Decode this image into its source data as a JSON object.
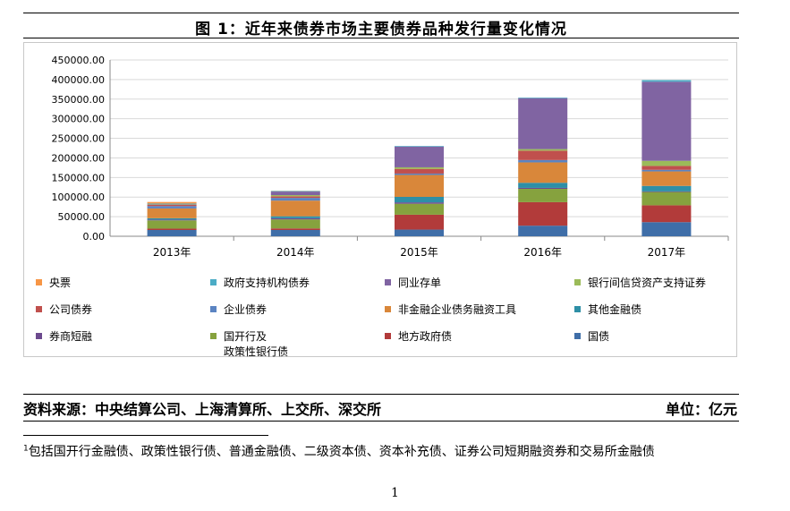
{
  "title": "图 1：近年来债券市场主要债券品种发行量变化情况",
  "source": "资料来源：中央结算公司、上海清算所、上交所、深交所",
  "unit": "单位：亿元",
  "footnote": {
    "mark": "1",
    "text": "包括国开行金融债、政策性银行债、普通金融债、二级资本债、资本补充债、证券公司短期融资券和交易所金融债"
  },
  "page_number": "1",
  "chart_data": {
    "type": "bar",
    "stacked": true,
    "categories": [
      "2013年",
      "2014年",
      "2015年",
      "2016年",
      "2017年"
    ],
    "ylim": [
      0,
      450000
    ],
    "yticks": [
      "0.00",
      "50000.00",
      "100000.00",
      "150000.00",
      "200000.00",
      "250000.00",
      "300000.00",
      "350000.00",
      "400000.00",
      "450000.00"
    ],
    "grid": true,
    "legend_position": "bottom",
    "series": [
      {
        "name": "国债",
        "color": "#3f6ea8",
        "values": [
          16000,
          16000,
          17000,
          27000,
          36000
        ]
      },
      {
        "name": "地方政府债",
        "color": "#b23b3a",
        "values": [
          3500,
          4000,
          38000,
          60000,
          43000
        ]
      },
      {
        "name": "国开行及\n政策性银行债",
        "color": "#86a23e",
        "values": [
          21000,
          23000,
          28000,
          34000,
          34000
        ]
      },
      {
        "name": "券商短融",
        "color": "#6c4a8e",
        "values": [
          2000,
          3000,
          3500,
          2500,
          1500
        ]
      },
      {
        "name": "其他金融债",
        "color": "#2e8fa6",
        "values": [
          3500,
          5000,
          14000,
          13000,
          14000
        ]
      },
      {
        "name": "非金融企业债务融资工具",
        "color": "#d9873a",
        "values": [
          25000,
          40000,
          56000,
          52000,
          37000
        ]
      },
      {
        "name": "企业债券",
        "color": "#5b84c2",
        "values": [
          6000,
          7000,
          3500,
          6000,
          4000
        ]
      },
      {
        "name": "公司债券",
        "color": "#c0504d",
        "values": [
          3000,
          4000,
          12000,
          24000,
          10000
        ]
      },
      {
        "name": "银行间信贷资产支持证券",
        "color": "#9bbb59",
        "values": [
          1000,
          3000,
          4000,
          4000,
          13000
        ]
      },
      {
        "name": "同业存单",
        "color": "#8064a2",
        "values": [
          1000,
          9000,
          53000,
          130000,
          202000
        ]
      },
      {
        "name": "政府支持机构债券",
        "color": "#4bacc6",
        "values": [
          1500,
          1500,
          1500,
          1500,
          4000
        ]
      },
      {
        "name": "央票",
        "color": "#f79646",
        "values": [
          4000,
          500,
          0,
          0,
          0
        ]
      }
    ],
    "legend_order": [
      "央票",
      "政府支持机构债券",
      "同业存单",
      "银行间信贷资产支持证券",
      "公司债券",
      "企业债券",
      "非金融企业债务融资工具",
      "其他金融债",
      "券商短融",
      "国开行及\n政策性银行债",
      "地方政府债",
      "国债"
    ]
  }
}
